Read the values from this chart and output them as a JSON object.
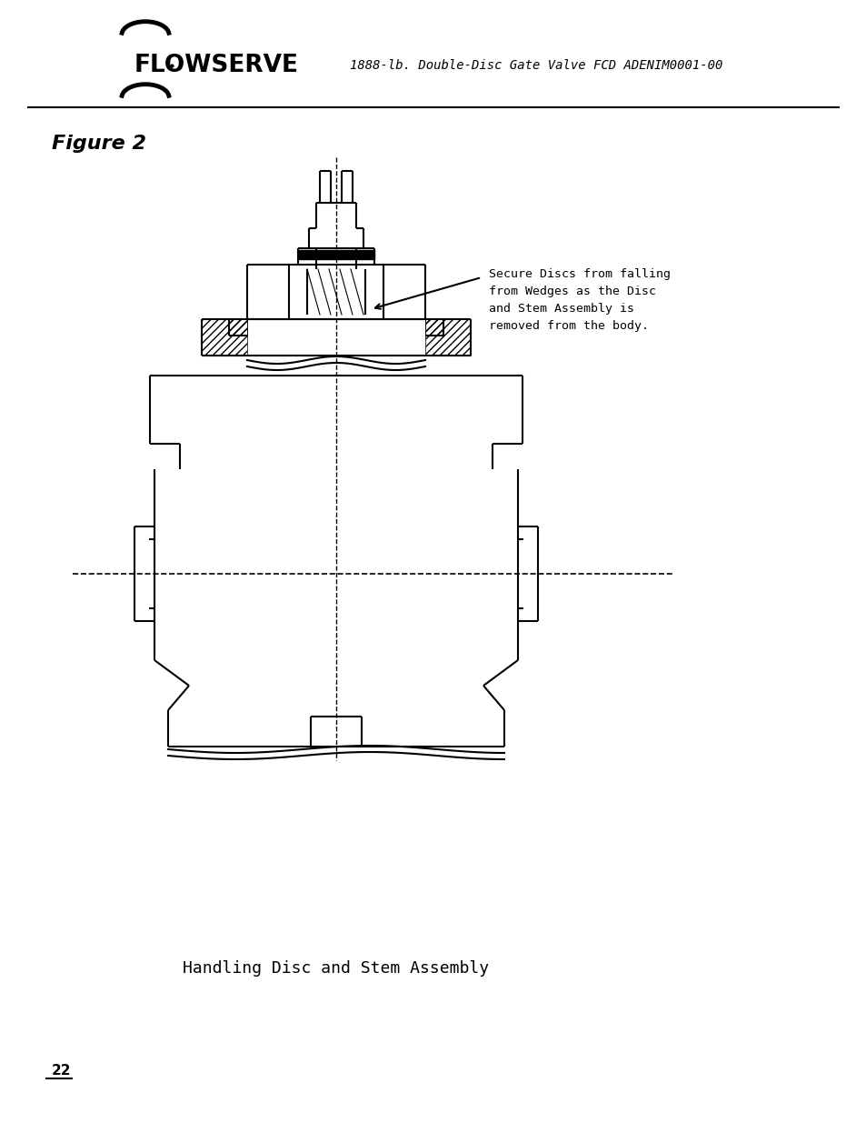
{
  "title": "Figure 2",
  "header_text": "1888-lb. Double-Disc Gate Valve FCD ADENIM0001-00",
  "caption": "Handling Disc and Stem Assembly",
  "page_number": "22",
  "annotation_text": "Secure Discs from falling\nfrom Wedges as the Disc\nand Stem Assembly is\nremoved from the body.",
  "bg_color": "#ffffff",
  "line_color": "#000000",
  "hatch_color": "#000000",
  "dashed_color": "#000000"
}
